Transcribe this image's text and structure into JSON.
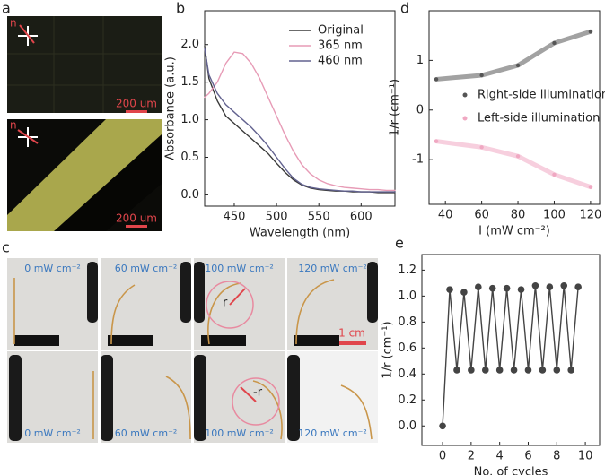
{
  "panel_labels": [
    "a",
    "b",
    "c",
    "d",
    "e"
  ],
  "micrographs": [
    {
      "axis_label": "n",
      "scale_bar": "200 um"
    },
    {
      "axis_label": "n",
      "scale_bar": "200 um"
    }
  ],
  "photos": {
    "power_labels": [
      "0 mW cm⁻²",
      "60 mW cm⁻²",
      "100 mW cm⁻²",
      "120 mW cm⁻²",
      "0 mW cm⁻²",
      "60 mW cm⁻²",
      "100 mW cm⁻²",
      "120 mW cm⁻²"
    ],
    "radius_labels": [
      "r",
      "-r"
    ],
    "scale_bar": "1 cm"
  },
  "chart_data": [
    {
      "type": "line",
      "x_label": "Wavelength (nm)",
      "y_label": "Absorbance (a.u.)",
      "x": [
        415,
        420,
        430,
        440,
        450,
        460,
        470,
        480,
        490,
        500,
        510,
        520,
        530,
        540,
        550,
        560,
        570,
        580,
        590,
        600,
        610,
        620,
        630,
        640
      ],
      "series": [
        {
          "name": "Original",
          "color": "#3a3a3a",
          "values": [
            1.98,
            1.55,
            1.25,
            1.05,
            0.95,
            0.85,
            0.75,
            0.65,
            0.55,
            0.42,
            0.3,
            0.2,
            0.13,
            0.09,
            0.07,
            0.06,
            0.05,
            0.05,
            0.04,
            0.04,
            0.04,
            0.03,
            0.03,
            0.03
          ]
        },
        {
          "name": "365 nm",
          "color": "#e79bb6",
          "values": [
            1.3,
            1.35,
            1.5,
            1.75,
            1.9,
            1.88,
            1.75,
            1.55,
            1.3,
            1.05,
            0.8,
            0.58,
            0.4,
            0.28,
            0.2,
            0.15,
            0.12,
            0.1,
            0.09,
            0.08,
            0.07,
            0.07,
            0.06,
            0.06
          ]
        },
        {
          "name": "460 nm",
          "color": "#62628f",
          "values": [
            1.95,
            1.6,
            1.35,
            1.2,
            1.1,
            1.0,
            0.9,
            0.78,
            0.65,
            0.5,
            0.35,
            0.22,
            0.14,
            0.1,
            0.08,
            0.07,
            0.06,
            0.05,
            0.05,
            0.04,
            0.04,
            0.04,
            0.04,
            0.04
          ]
        }
      ],
      "xlim": [
        415,
        640
      ],
      "xticks": [
        450,
        500,
        550,
        600
      ],
      "ylim": [
        -0.15,
        2.45
      ],
      "yticks": [
        {
          "value": 0,
          "label": "0.0"
        },
        {
          "value": 0.5,
          "label": "0.5"
        },
        {
          "value": 1,
          "label": "1.0"
        },
        {
          "value": 1.5,
          "label": "1.5"
        },
        {
          "value": 2,
          "label": "2.0"
        }
      ],
      "legend": "upper right",
      "markers": false
    },
    {
      "type": "line",
      "x_label": "I (mW cm⁻²)",
      "y_label": "1/r (cm⁻¹)",
      "x": [
        35,
        60,
        80,
        100,
        120
      ],
      "series": [
        {
          "name": "Right-side illumination",
          "color": "#555555",
          "values": [
            0.62,
            0.7,
            0.9,
            1.35,
            1.58
          ]
        },
        {
          "name": "Left-side illumination",
          "color": "#f0a8c2",
          "values": [
            -0.63,
            -0.75,
            -0.93,
            -1.3,
            -1.55
          ]
        }
      ],
      "xlim": [
        31,
        125
      ],
      "xticks": [
        40,
        60,
        80,
        100,
        120
      ],
      "ylim": [
        -1.9,
        2.0
      ],
      "yticks": [
        -1,
        0,
        1
      ],
      "legend": "center right",
      "markers": true,
      "band": true
    },
    {
      "type": "line",
      "x_label": "No. of cycles",
      "y_label": "1/r (cm⁻¹)",
      "x": [
        0,
        0.5,
        1,
        1.5,
        2,
        2.5,
        3,
        3.5,
        4,
        4.5,
        5,
        5.5,
        6,
        6.5,
        7,
        7.5,
        8,
        8.5,
        9,
        9.5
      ],
      "values": [
        0,
        1.05,
        0.43,
        1.03,
        0.43,
        1.07,
        0.43,
        1.06,
        0.43,
        1.06,
        0.43,
        1.05,
        0.43,
        1.08,
        0.43,
        1.07,
        0.43,
        1.08,
        0.43,
        1.07
      ],
      "color": "#444444",
      "xlim": [
        -1.45,
        11
      ],
      "xticks": [
        0,
        2,
        4,
        6,
        8,
        10
      ],
      "ylim": [
        -0.15,
        1.32
      ],
      "yticks": [
        {
          "value": 0,
          "label": "0.0"
        },
        {
          "value": 0.2,
          "label": "0.2"
        },
        {
          "value": 0.4,
          "label": "0.4"
        },
        {
          "value": 0.6,
          "label": "0.6"
        },
        {
          "value": 0.8,
          "label": "0.8"
        },
        {
          "value": 1,
          "label": "1.0"
        },
        {
          "value": 1.2,
          "label": "1.2"
        }
      ],
      "markers": true
    }
  ]
}
